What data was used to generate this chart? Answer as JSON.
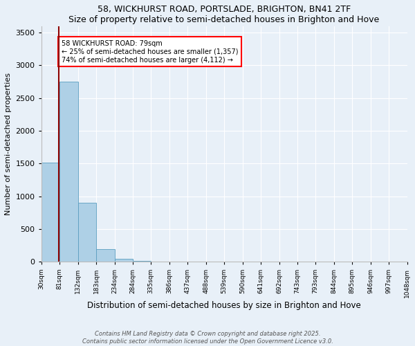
{
  "title": "58, WICKHURST ROAD, PORTSLADE, BRIGHTON, BN41 2TF",
  "subtitle": "Size of property relative to semi-detached houses in Brighton and Hove",
  "xlabel": "Distribution of semi-detached houses by size in Brighton and Hove",
  "ylabel": "Number of semi-detached properties",
  "bar_color": "#aed0e6",
  "bar_edge_color": "#5a9ec0",
  "background_color": "#e8f0f8",
  "grid_color": "#ffffff",
  "bin_edges": [
    30,
    81,
    132,
    183,
    234,
    284,
    335,
    386,
    437,
    488,
    539,
    590,
    641,
    692,
    743,
    793,
    844,
    895,
    946,
    997,
    1048
  ],
  "bin_labels": [
    "30sqm",
    "81sqm",
    "132sqm",
    "183sqm",
    "234sqm",
    "284sqm",
    "335sqm",
    "386sqm",
    "437sqm",
    "488sqm",
    "539sqm",
    "590sqm",
    "641sqm",
    "692sqm",
    "743sqm",
    "793sqm",
    "844sqm",
    "895sqm",
    "946sqm",
    "997sqm",
    "1048sqm"
  ],
  "bar_heights": [
    1510,
    2750,
    900,
    200,
    50,
    20,
    5,
    2,
    1,
    0,
    0,
    0,
    0,
    0,
    0,
    0,
    0,
    0,
    0,
    0
  ],
  "property_size": 79,
  "property_line_color": "#8b0000",
  "annotation_text": "58 WICKHURST ROAD: 79sqm\n← 25% of semi-detached houses are smaller (1,357)\n74% of semi-detached houses are larger (4,112) →",
  "ylim": [
    0,
    3600
  ],
  "yticks": [
    0,
    500,
    1000,
    1500,
    2000,
    2500,
    3000,
    3500
  ],
  "footnote1": "Contains HM Land Registry data © Crown copyright and database right 2025.",
  "footnote2": "Contains public sector information licensed under the Open Government Licence v3.0."
}
